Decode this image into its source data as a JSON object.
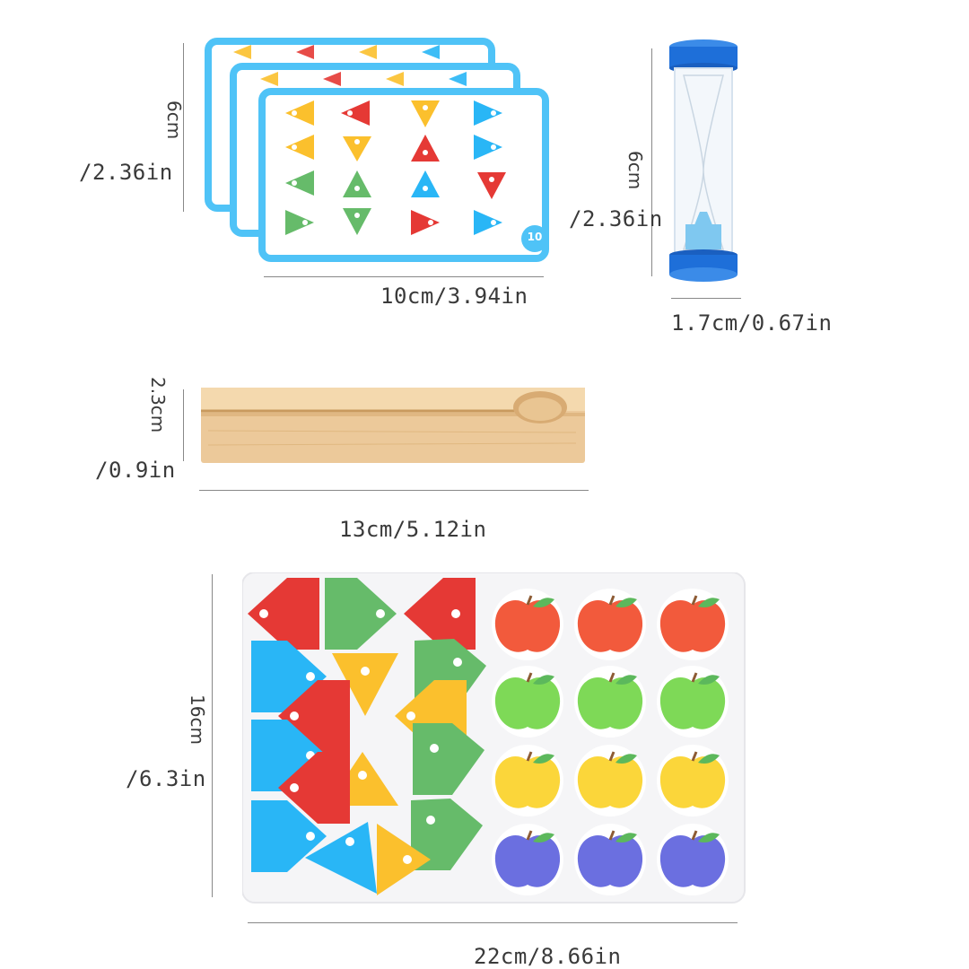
{
  "cards": {
    "height_label_cm": "6cm",
    "height_label_in": "/2.36in",
    "width_label": "10cm/3.94in",
    "card_number": "10",
    "colors": {
      "border": "#4fc3f7",
      "red": "#e53935",
      "yellow": "#fbc02d",
      "green": "#66bb6a",
      "blue": "#29b6f6"
    }
  },
  "timer": {
    "height_label_cm": "6cm",
    "height_label_in": "/2.36in",
    "width_label": "1.7cm/0.67in",
    "colors": {
      "cap": "#1e6fd9",
      "sand": "#7fc8f0"
    }
  },
  "stand": {
    "height_label_cm": "2.3cm",
    "height_label_in": "/0.9in",
    "width_label": "13cm/5.12in",
    "colors": {
      "wood": "#ecc99a",
      "wood_dark": "#d8ab73"
    }
  },
  "board": {
    "height_label_cm": "16cm",
    "height_label_in": "/6.3in",
    "width_label": "22cm/8.66in",
    "apple_colors": [
      "#f25a3c",
      "#7ed957",
      "#fbd63a",
      "#6b6fe0"
    ]
  }
}
